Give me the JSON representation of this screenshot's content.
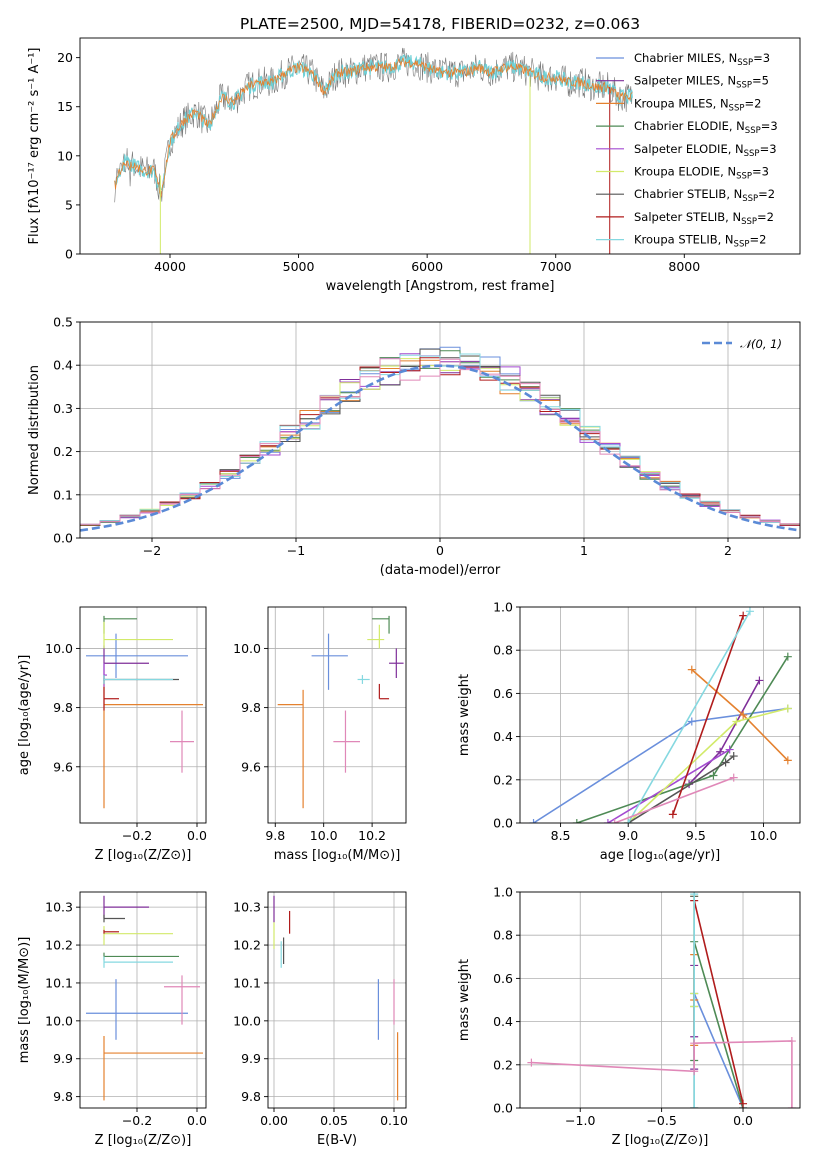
{
  "figure_title": "PLATE=2500, MJD=54178, FIBERID=0232, z=0.063",
  "models": [
    {
      "name": "Chabrier MILES, N",
      "sub": "SSP",
      "tail": "=3",
      "color": "#6a8fdc"
    },
    {
      "name": "Salpeter MILES, N",
      "sub": "SSP",
      "tail": "=5",
      "color": "#7f2f99"
    },
    {
      "name": "Kroupa MILES, N",
      "sub": "SSP",
      "tail": "=2",
      "color": "#e4812f"
    },
    {
      "name": "Chabrier ELODIE, N",
      "sub": "SSP",
      "tail": "=3",
      "color": "#4e8a55"
    },
    {
      "name": "Salpeter ELODIE, N",
      "sub": "SSP",
      "tail": "=3",
      "color": "#a34ad1"
    },
    {
      "name": "Kroupa ELODIE, N",
      "sub": "SSP",
      "tail": "=3",
      "color": "#d2ea6a"
    },
    {
      "name": "Chabrier STELIB, N",
      "sub": "SSP",
      "tail": "=2",
      "color": "#555555"
    },
    {
      "name": "Salpeter STELIB, N",
      "sub": "SSP",
      "tail": "=2",
      "color": "#b01c1c"
    },
    {
      "name": "Kroupa STELIB, N",
      "sub": "SSP",
      "tail": "=2",
      "color": "#85d8e0"
    }
  ],
  "extra_colors": {
    "pink": "#e088b8",
    "data": "#7a7a7a",
    "spec_cyan": "#6fd0d6",
    "gauss": "#5b8ad6"
  },
  "chart_data": [
    {
      "id": "spectrum",
      "type": "line",
      "title": "PLATE=2500, MJD=54178, FIBERID=0232, z=0.063",
      "xlabel": "wavelength [Angstrom, rest frame]",
      "ylabel": "Flux [fλ10⁻¹⁷ erg cm⁻² s⁻¹ A⁻¹]",
      "xlim": [
        3300,
        8900
      ],
      "ylim": [
        0,
        22
      ],
      "xticks": [
        4000,
        5000,
        6000,
        7000,
        8000
      ],
      "yticks": [
        0,
        5,
        10,
        15,
        20
      ],
      "series": [
        {
          "x": [
            3570,
            3650,
            3720,
            3800,
            3880,
            3930,
            4000,
            4100,
            4200,
            4300,
            4400,
            4500,
            4600,
            4700,
            4800,
            4900,
            5000,
            5100,
            5200,
            5300,
            5400,
            5500,
            5600,
            5700,
            5800,
            5900,
            6000,
            6100,
            6200,
            6300,
            6400,
            6500,
            6600,
            6700,
            6800,
            6900,
            7000,
            7100,
            7200,
            7300,
            7400,
            7500,
            7600
          ],
          "y": [
            7.5,
            9.5,
            9.0,
            8.5,
            8.5,
            6.0,
            11.5,
            13.5,
            14.5,
            13.0,
            16.0,
            15.5,
            17.0,
            17.5,
            17.5,
            18.5,
            19.0,
            18.5,
            16.5,
            18.5,
            18.5,
            19.0,
            19.0,
            19.0,
            19.5,
            19.5,
            19.0,
            18.5,
            18.5,
            18.5,
            19.0,
            18.5,
            19.0,
            19.0,
            18.5,
            18.0,
            18.0,
            17.5,
            17.5,
            17.0,
            17.0,
            16.0,
            16.0
          ]
        }
      ]
    },
    {
      "id": "residuals",
      "type": "line",
      "xlabel": "(data-model)/error",
      "ylabel": "Normed distribution",
      "xlim": [
        -2.5,
        2.5
      ],
      "ylim": [
        0,
        0.5
      ],
      "xticks": [
        -2,
        -1,
        0,
        1,
        2
      ],
      "yticks": [
        0.0,
        0.1,
        0.2,
        0.3,
        0.4,
        0.5
      ],
      "grid": true,
      "legend": "top-right",
      "legend_label": "𝒩(0, 1)",
      "series": [
        {
          "name": "𝒩(0, 1)",
          "mu": 0,
          "sigma": 1
        }
      ]
    },
    {
      "id": "age_vs_Z",
      "type": "scatter",
      "xlabel": "Z [log₁₀(Z/Z⊙)]",
      "ylabel": "age  [log₁₀(age/yr)]",
      "xlim": [
        -0.39,
        0.03
      ],
      "ylim": [
        9.41,
        10.14
      ],
      "xticks": [
        -0.2,
        0.0
      ],
      "yticks": [
        9.6,
        9.8,
        10.0
      ],
      "grid": true,
      "points": [
        {
          "x": -0.27,
          "y": 9.975,
          "xmin": -0.37,
          "xmax": -0.03,
          "ymin": 9.9,
          "ymax": 10.05,
          "c": 0
        },
        {
          "x": -0.31,
          "y": 9.95,
          "xmin": -0.31,
          "xmax": -0.16,
          "ymin": 9.89,
          "ymax": 10.01,
          "c": 1
        },
        {
          "x": -0.31,
          "y": 9.81,
          "xmin": -0.31,
          "xmax": 0.02,
          "ymin": 9.46,
          "ymax": 9.9,
          "c": 2
        },
        {
          "x": -0.31,
          "y": 10.1,
          "xmin": -0.31,
          "xmax": -0.2,
          "ymin": 10.05,
          "ymax": 10.11,
          "c": 3
        },
        {
          "x": -0.31,
          "y": 9.91,
          "xmin": -0.31,
          "xmax": -0.3,
          "ymin": 9.87,
          "ymax": 9.95,
          "c": 4
        },
        {
          "x": -0.31,
          "y": 10.03,
          "xmin": -0.31,
          "xmax": -0.08,
          "ymin": 10.0,
          "ymax": 10.09,
          "c": 5
        },
        {
          "x": -0.31,
          "y": 9.895,
          "xmin": -0.31,
          "xmax": -0.06,
          "ymin": 9.88,
          "ymax": 9.91,
          "c": 6
        },
        {
          "x": -0.31,
          "y": 9.83,
          "xmin": -0.31,
          "xmax": -0.26,
          "ymin": 9.79,
          "ymax": 9.87,
          "c": 7
        },
        {
          "x": -0.31,
          "y": 9.895,
          "xmin": -0.31,
          "xmax": -0.08,
          "ymin": 9.88,
          "ymax": 9.91,
          "c": 8
        },
        {
          "x": -0.05,
          "y": 9.685,
          "xmin": -0.09,
          "xmax": -0.01,
          "ymin": 9.58,
          "ymax": 9.79,
          "c": "pink"
        }
      ]
    },
    {
      "id": "age_vs_mass",
      "type": "scatter",
      "xlabel": "mass [log₁₀(M/M⊙)]",
      "xlim": [
        9.77,
        10.34
      ],
      "ylim": [
        9.41,
        10.14
      ],
      "xticks": [
        9.8,
        10.0,
        10.2
      ],
      "yticks": [
        9.6,
        9.8,
        10.0
      ],
      "grid": true,
      "points": [
        {
          "x": 10.02,
          "y": 9.975,
          "xmin": 9.95,
          "xmax": 10.1,
          "ymin": 9.86,
          "ymax": 10.05,
          "c": 0
        },
        {
          "x": 10.3,
          "y": 9.95,
          "xmin": 10.27,
          "xmax": 10.33,
          "ymin": 9.9,
          "ymax": 10.0,
          "c": 1
        },
        {
          "x": 9.915,
          "y": 9.81,
          "xmin": 9.81,
          "xmax": 9.915,
          "ymin": 9.46,
          "ymax": 9.86,
          "c": 2
        },
        {
          "x": 10.27,
          "y": 10.1,
          "xmin": 10.2,
          "xmax": 10.27,
          "ymin": 10.05,
          "ymax": 10.11,
          "c": 3
        },
        {
          "x": 10.23,
          "y": 10.03,
          "xmin": 10.18,
          "xmax": 10.25,
          "ymin": 10.0,
          "ymax": 10.08,
          "c": 5
        },
        {
          "x": 10.16,
          "y": 9.895,
          "xmin": 10.14,
          "xmax": 10.19,
          "ymin": 9.88,
          "ymax": 9.91,
          "c": 8
        },
        {
          "x": 10.23,
          "y": 9.83,
          "xmin": 10.23,
          "xmax": 10.27,
          "ymin": 9.83,
          "ymax": 9.88,
          "c": 7
        },
        {
          "x": 10.09,
          "y": 9.685,
          "xmin": 10.04,
          "xmax": 10.15,
          "ymin": 9.58,
          "ymax": 9.79,
          "c": "pink"
        }
      ]
    },
    {
      "id": "mass_weight_vs_age",
      "type": "line",
      "xlabel": "age  [log₁₀(age/yr)]",
      "ylabel": "mass weight",
      "xlim": [
        8.2,
        10.27
      ],
      "ylim": [
        0,
        1.0
      ],
      "xticks": [
        8.5,
        9.0,
        9.5,
        10.0
      ],
      "yticks": [
        0.0,
        0.2,
        0.4,
        0.6,
        0.8,
        1.0
      ],
      "grid": true,
      "series": [
        {
          "c": 0,
          "x": [
            8.3,
            9.47,
            10.18
          ],
          "y": [
            0.0,
            0.47,
            0.53
          ]
        },
        {
          "c": 1,
          "x": [
            9.45,
            9.68,
            9.97
          ],
          "y": [
            0.18,
            0.33,
            0.66
          ]
        },
        {
          "c": 2,
          "x": [
            9.47,
            9.85,
            10.18
          ],
          "y": [
            0.71,
            0.5,
            0.29
          ]
        },
        {
          "c": 3,
          "x": [
            8.62,
            9.63,
            10.18
          ],
          "y": [
            0.0,
            0.22,
            0.77
          ]
        },
        {
          "c": 4,
          "x": [
            8.85,
            9.75
          ],
          "y": [
            0.0,
            0.34
          ]
        },
        {
          "c": 5,
          "x": [
            9.0,
            9.8,
            10.18
          ],
          "y": [
            0.0,
            0.47,
            0.53
          ]
        },
        {
          "c": 6,
          "x": [
            9.0,
            9.72,
            9.78
          ],
          "y": [
            0.0,
            0.28,
            0.31
          ]
        },
        {
          "c": 7,
          "x": [
            9.33,
            9.85
          ],
          "y": [
            0.04,
            0.96
          ]
        },
        {
          "c": 8,
          "x": [
            9.0,
            9.9
          ],
          "y": [
            0.0,
            0.98
          ]
        },
        {
          "c": "pink",
          "x": [
            8.9,
            9.78
          ],
          "y": [
            0.0,
            0.21
          ]
        }
      ]
    },
    {
      "id": "mass_vs_Z",
      "type": "scatter",
      "xlabel": "Z [log₁₀(Z/Z⊙)]",
      "ylabel": "mass [log₁₀(M/M⊙)]",
      "xlim": [
        -0.39,
        0.03
      ],
      "ylim": [
        9.77,
        10.34
      ],
      "xticks": [
        -0.2,
        0.0
      ],
      "yticks": [
        9.8,
        9.9,
        10.0,
        10.1,
        10.2,
        10.3
      ],
      "grid": true,
      "points": [
        {
          "x": -0.27,
          "y": 10.02,
          "xmin": -0.37,
          "xmax": -0.03,
          "ymin": 9.95,
          "ymax": 10.11,
          "c": 0
        },
        {
          "x": -0.31,
          "y": 10.3,
          "xmin": -0.31,
          "xmax": -0.16,
          "ymin": 10.27,
          "ymax": 10.33,
          "c": 1
        },
        {
          "x": -0.31,
          "y": 9.915,
          "xmin": -0.31,
          "xmax": 0.02,
          "ymin": 9.79,
          "ymax": 9.96,
          "c": 2
        },
        {
          "x": -0.31,
          "y": 10.27,
          "xmin": -0.31,
          "xmax": -0.24,
          "ymin": 10.26,
          "ymax": 10.28,
          "c": 6
        },
        {
          "x": -0.31,
          "y": 10.23,
          "xmin": -0.31,
          "xmax": -0.08,
          "ymin": 10.2,
          "ymax": 10.25,
          "c": 5
        },
        {
          "x": -0.31,
          "y": 10.235,
          "xmin": -0.31,
          "xmax": -0.26,
          "ymin": 10.23,
          "ymax": 10.24,
          "c": 7
        },
        {
          "x": -0.31,
          "y": 10.17,
          "xmin": -0.31,
          "xmax": -0.06,
          "ymin": 10.16,
          "ymax": 10.18,
          "c": 3
        },
        {
          "x": -0.31,
          "y": 10.155,
          "xmin": -0.31,
          "xmax": -0.08,
          "ymin": 10.14,
          "ymax": 10.17,
          "c": 8
        },
        {
          "x": -0.05,
          "y": 10.09,
          "xmin": -0.11,
          "xmax": 0.01,
          "ymin": 9.99,
          "ymax": 10.12,
          "c": "pink"
        }
      ]
    },
    {
      "id": "mass_vs_ebv",
      "type": "scatter",
      "xlabel": "E(B-V)",
      "xlim": [
        -0.005,
        0.11
      ],
      "ylim": [
        9.77,
        10.34
      ],
      "xticks": [
        0.0,
        0.05,
        0.1
      ],
      "yticks": [
        9.8,
        9.9,
        10.0,
        10.1,
        10.2,
        10.3
      ],
      "grid": true,
      "points": [
        {
          "x": 0.087,
          "y": 10.02,
          "ymin": 9.95,
          "ymax": 10.11,
          "c": 0
        },
        {
          "x": 0.0,
          "y": 10.3,
          "ymin": 10.26,
          "ymax": 10.33,
          "c": 1
        },
        {
          "x": 0.103,
          "y": 9.915,
          "ymin": 9.79,
          "ymax": 9.97,
          "c": 2
        },
        {
          "x": 0.0,
          "y": 10.23,
          "ymin": 10.19,
          "ymax": 10.26,
          "c": 5
        },
        {
          "x": 0.008,
          "y": 10.2,
          "ymin": 10.15,
          "ymax": 10.22,
          "c": 6
        },
        {
          "x": 0.013,
          "y": 10.26,
          "ymin": 10.23,
          "ymax": 10.29,
          "c": 7
        },
        {
          "x": 0.006,
          "y": 10.18,
          "ymin": 10.14,
          "ymax": 10.21,
          "c": 8
        },
        {
          "x": 0.1,
          "y": 10.06,
          "ymin": 9.99,
          "ymax": 10.11,
          "c": "pink"
        }
      ]
    },
    {
      "id": "mass_weight_vs_Z",
      "type": "line",
      "xlabel": "Z [log₁₀(Z/Z⊙)]",
      "ylabel": "mass weight",
      "xlim": [
        -1.37,
        0.35
      ],
      "ylim": [
        0,
        1.0
      ],
      "xticks": [
        -1.0,
        -0.5,
        0.0
      ],
      "yticks": [
        0.0,
        0.2,
        0.4,
        0.6,
        0.8,
        1.0
      ],
      "grid": true,
      "series": [
        {
          "c": 0,
          "x": [
            -0.3,
            -0.3,
            0.0
          ],
          "y": [
            0.47,
            0.53,
            0.0
          ]
        },
        {
          "c": 1,
          "x": [
            -0.3,
            -0.3,
            -0.3
          ],
          "y": [
            0.18,
            0.33,
            0.66
          ]
        },
        {
          "c": 2,
          "x": [
            -0.3,
            -0.3,
            -0.3
          ],
          "y": [
            0.29,
            0.5,
            0.71
          ]
        },
        {
          "c": 3,
          "x": [
            -0.3,
            -0.3,
            0.0
          ],
          "y": [
            0.22,
            0.77,
            0.0
          ]
        },
        {
          "c": 5,
          "x": [
            -0.3,
            -0.3,
            -0.3
          ],
          "y": [
            0.47,
            0.53,
            0.98
          ]
        },
        {
          "c": 6,
          "x": [
            -0.3,
            -0.3
          ],
          "y": [
            0.0,
            0.98
          ]
        },
        {
          "c": 7,
          "x": [
            -0.3,
            0.0
          ],
          "y": [
            0.96,
            0.02
          ]
        },
        {
          "c": 8,
          "x": [
            -0.3,
            -0.3
          ],
          "y": [
            0.0,
            0.99
          ]
        },
        {
          "c": "pink",
          "x": [
            -1.3,
            -0.3,
            -0.3,
            0.3,
            0.3
          ],
          "y": [
            0.21,
            0.17,
            0.3,
            0.31,
            0.0
          ]
        }
      ]
    }
  ]
}
